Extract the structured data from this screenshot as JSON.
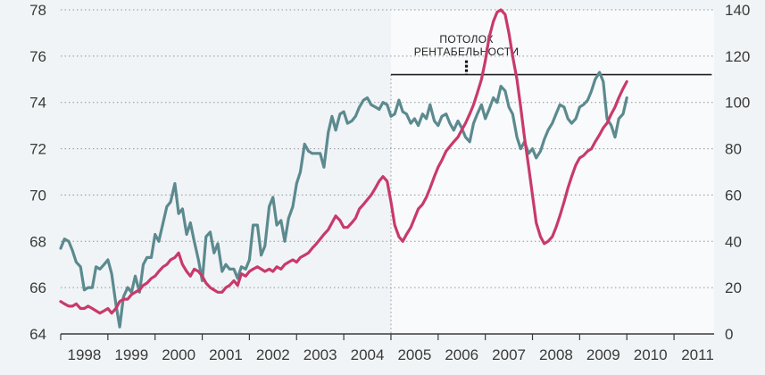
{
  "chart_data": {
    "type": "line",
    "xlabels": [
      "1998",
      "1999",
      "2000",
      "2001",
      "2002",
      "2003",
      "2004",
      "2005",
      "2006",
      "2007",
      "2008",
      "2009",
      "2010",
      "2011"
    ],
    "x_range": [
      1998.0,
      2011.85
    ],
    "y_left": {
      "range": [
        64,
        78
      ],
      "ticks": [
        64,
        66,
        68,
        70,
        72,
        74,
        76,
        78
      ]
    },
    "y_right": {
      "range": [
        0,
        140
      ],
      "ticks": [
        0,
        20,
        40,
        60,
        80,
        100,
        120,
        140
      ]
    },
    "grid": true,
    "highlight_start": 2005.0,
    "annotation": {
      "lines": [
        "ПОТОЛОК",
        "РЕНТАБЕЛЬНОСТИ"
      ],
      "ceiling_value": 75.2,
      "x_start": 2005.0,
      "x_end": 2011.8,
      "marker_x": 2006.6
    },
    "colors": {
      "teal": "#5b8a8f",
      "crimson": "#c83a6b",
      "trend": "#3a3344",
      "highlight": "#ffffff"
    },
    "series": [
      {
        "axis": "left",
        "color": "#5b8a8f",
        "points": [
          [
            1998.0,
            67.7
          ],
          [
            1998.08,
            68.1
          ],
          [
            1998.17,
            68.0
          ],
          [
            1998.25,
            67.6
          ],
          [
            1998.33,
            67.1
          ],
          [
            1998.42,
            66.9
          ],
          [
            1998.5,
            65.9
          ],
          [
            1998.58,
            66.0
          ],
          [
            1998.67,
            66.0
          ],
          [
            1998.75,
            66.9
          ],
          [
            1998.83,
            66.8
          ],
          [
            1998.92,
            67.0
          ],
          [
            1999.0,
            67.2
          ],
          [
            1999.08,
            66.6
          ],
          [
            1999.17,
            65.3
          ],
          [
            1999.25,
            64.3
          ],
          [
            1999.33,
            65.6
          ],
          [
            1999.42,
            66.0
          ],
          [
            1999.5,
            65.8
          ],
          [
            1999.58,
            66.5
          ],
          [
            1999.67,
            65.8
          ],
          [
            1999.75,
            67.0
          ],
          [
            1999.83,
            67.3
          ],
          [
            1999.92,
            67.3
          ],
          [
            2000.0,
            68.3
          ],
          [
            2000.08,
            68.0
          ],
          [
            2000.17,
            68.8
          ],
          [
            2000.25,
            69.5
          ],
          [
            2000.33,
            69.7
          ],
          [
            2000.42,
            70.5
          ],
          [
            2000.5,
            69.2
          ],
          [
            2000.58,
            69.4
          ],
          [
            2000.67,
            68.3
          ],
          [
            2000.75,
            68.8
          ],
          [
            2000.83,
            68.0
          ],
          [
            2000.92,
            67.2
          ],
          [
            2001.0,
            66.3
          ],
          [
            2001.08,
            68.2
          ],
          [
            2001.17,
            68.4
          ],
          [
            2001.25,
            67.5
          ],
          [
            2001.33,
            67.9
          ],
          [
            2001.42,
            66.7
          ],
          [
            2001.5,
            67.0
          ],
          [
            2001.58,
            66.8
          ],
          [
            2001.67,
            66.8
          ],
          [
            2001.75,
            66.4
          ],
          [
            2001.83,
            66.9
          ],
          [
            2001.92,
            66.8
          ],
          [
            2002.0,
            67.2
          ],
          [
            2002.08,
            68.7
          ],
          [
            2002.17,
            68.7
          ],
          [
            2002.25,
            67.4
          ],
          [
            2002.33,
            67.8
          ],
          [
            2002.42,
            69.5
          ],
          [
            2002.5,
            69.9
          ],
          [
            2002.58,
            68.7
          ],
          [
            2002.67,
            68.9
          ],
          [
            2002.75,
            68.0
          ],
          [
            2002.83,
            69.0
          ],
          [
            2002.92,
            69.5
          ],
          [
            2003.0,
            70.5
          ],
          [
            2003.08,
            71.0
          ],
          [
            2003.17,
            72.2
          ],
          [
            2003.25,
            71.9
          ],
          [
            2003.33,
            71.8
          ],
          [
            2003.42,
            71.8
          ],
          [
            2003.5,
            71.8
          ],
          [
            2003.58,
            71.2
          ],
          [
            2003.67,
            72.7
          ],
          [
            2003.75,
            73.4
          ],
          [
            2003.83,
            72.8
          ],
          [
            2003.92,
            73.5
          ],
          [
            2004.0,
            73.6
          ],
          [
            2004.08,
            73.1
          ],
          [
            2004.17,
            73.2
          ],
          [
            2004.25,
            73.4
          ],
          [
            2004.33,
            73.8
          ],
          [
            2004.42,
            74.1
          ],
          [
            2004.5,
            74.2
          ],
          [
            2004.58,
            73.9
          ],
          [
            2004.67,
            73.8
          ],
          [
            2004.75,
            73.7
          ],
          [
            2004.83,
            74.0
          ],
          [
            2004.92,
            73.9
          ],
          [
            2005.0,
            73.4
          ],
          [
            2005.08,
            73.5
          ],
          [
            2005.17,
            74.1
          ],
          [
            2005.25,
            73.6
          ],
          [
            2005.33,
            73.5
          ],
          [
            2005.42,
            73.1
          ],
          [
            2005.5,
            73.3
          ],
          [
            2005.58,
            73.0
          ],
          [
            2005.67,
            73.5
          ],
          [
            2005.75,
            73.3
          ],
          [
            2005.83,
            73.9
          ],
          [
            2005.92,
            73.2
          ],
          [
            2006.0,
            73.0
          ],
          [
            2006.08,
            73.4
          ],
          [
            2006.17,
            73.5
          ],
          [
            2006.25,
            73.1
          ],
          [
            2006.33,
            72.8
          ],
          [
            2006.42,
            73.2
          ],
          [
            2006.5,
            72.9
          ],
          [
            2006.58,
            72.5
          ],
          [
            2006.67,
            72.3
          ],
          [
            2006.75,
            73.1
          ],
          [
            2006.83,
            73.5
          ],
          [
            2006.92,
            73.9
          ],
          [
            2007.0,
            73.3
          ],
          [
            2007.08,
            73.7
          ],
          [
            2007.17,
            74.2
          ],
          [
            2007.25,
            74.0
          ],
          [
            2007.33,
            74.7
          ],
          [
            2007.42,
            74.5
          ],
          [
            2007.5,
            73.8
          ],
          [
            2007.58,
            73.5
          ],
          [
            2007.67,
            72.5
          ],
          [
            2007.75,
            72.0
          ],
          [
            2007.83,
            72.3
          ],
          [
            2007.92,
            71.8
          ],
          [
            2008.0,
            72.0
          ],
          [
            2008.08,
            71.6
          ],
          [
            2008.17,
            71.9
          ],
          [
            2008.25,
            72.4
          ],
          [
            2008.33,
            72.8
          ],
          [
            2008.42,
            73.1
          ],
          [
            2008.5,
            73.5
          ],
          [
            2008.58,
            73.9
          ],
          [
            2008.67,
            73.8
          ],
          [
            2008.75,
            73.3
          ],
          [
            2008.83,
            73.1
          ],
          [
            2008.92,
            73.3
          ],
          [
            2009.0,
            73.8
          ],
          [
            2009.08,
            73.9
          ],
          [
            2009.17,
            74.1
          ],
          [
            2009.25,
            74.5
          ],
          [
            2009.33,
            75.0
          ],
          [
            2009.42,
            75.3
          ],
          [
            2009.5,
            74.9
          ],
          [
            2009.58,
            73.3
          ],
          [
            2009.67,
            73.0
          ],
          [
            2009.75,
            72.5
          ],
          [
            2009.83,
            73.3
          ],
          [
            2009.92,
            73.5
          ],
          [
            2010.0,
            74.2
          ]
        ]
      },
      {
        "axis": "right",
        "color": "#c83a6b",
        "points": [
          [
            1998.0,
            14
          ],
          [
            1998.08,
            13
          ],
          [
            1998.17,
            12
          ],
          [
            1998.25,
            12
          ],
          [
            1998.33,
            13
          ],
          [
            1998.42,
            11
          ],
          [
            1998.5,
            11
          ],
          [
            1998.58,
            12
          ],
          [
            1998.67,
            11
          ],
          [
            1998.75,
            10
          ],
          [
            1998.83,
            9
          ],
          [
            1998.92,
            10
          ],
          [
            1999.0,
            11
          ],
          [
            1999.08,
            9
          ],
          [
            1999.17,
            11
          ],
          [
            1999.25,
            14
          ],
          [
            1999.33,
            15
          ],
          [
            1999.42,
            15
          ],
          [
            1999.5,
            17
          ],
          [
            1999.58,
            18
          ],
          [
            1999.67,
            19
          ],
          [
            1999.75,
            21
          ],
          [
            1999.83,
            22
          ],
          [
            1999.92,
            24
          ],
          [
            2000.0,
            25
          ],
          [
            2000.08,
            27
          ],
          [
            2000.17,
            29
          ],
          [
            2000.25,
            30
          ],
          [
            2000.33,
            32
          ],
          [
            2000.42,
            33
          ],
          [
            2000.5,
            35
          ],
          [
            2000.58,
            30
          ],
          [
            2000.67,
            27
          ],
          [
            2000.75,
            25
          ],
          [
            2000.83,
            28
          ],
          [
            2000.92,
            27
          ],
          [
            2001.0,
            25
          ],
          [
            2001.08,
            22
          ],
          [
            2001.17,
            20
          ],
          [
            2001.25,
            19
          ],
          [
            2001.33,
            18
          ],
          [
            2001.42,
            18
          ],
          [
            2001.5,
            20
          ],
          [
            2001.58,
            21
          ],
          [
            2001.67,
            23
          ],
          [
            2001.75,
            21
          ],
          [
            2001.83,
            26
          ],
          [
            2001.92,
            25
          ],
          [
            2002.0,
            27
          ],
          [
            2002.08,
            28
          ],
          [
            2002.17,
            29
          ],
          [
            2002.25,
            28
          ],
          [
            2002.33,
            27
          ],
          [
            2002.42,
            28
          ],
          [
            2002.5,
            27
          ],
          [
            2002.58,
            29
          ],
          [
            2002.67,
            28
          ],
          [
            2002.75,
            30
          ],
          [
            2002.83,
            31
          ],
          [
            2002.92,
            32
          ],
          [
            2003.0,
            31
          ],
          [
            2003.08,
            33
          ],
          [
            2003.17,
            34
          ],
          [
            2003.25,
            35
          ],
          [
            2003.33,
            37
          ],
          [
            2003.42,
            39
          ],
          [
            2003.5,
            41
          ],
          [
            2003.58,
            43
          ],
          [
            2003.67,
            45
          ],
          [
            2003.75,
            48
          ],
          [
            2003.83,
            51
          ],
          [
            2003.92,
            49
          ],
          [
            2004.0,
            46
          ],
          [
            2004.08,
            46
          ],
          [
            2004.17,
            48
          ],
          [
            2004.25,
            50
          ],
          [
            2004.33,
            54
          ],
          [
            2004.42,
            56
          ],
          [
            2004.5,
            58
          ],
          [
            2004.58,
            60
          ],
          [
            2004.67,
            63
          ],
          [
            2004.75,
            66
          ],
          [
            2004.83,
            68
          ],
          [
            2004.92,
            66
          ],
          [
            2005.0,
            57
          ],
          [
            2005.08,
            47
          ],
          [
            2005.17,
            42
          ],
          [
            2005.25,
            40
          ],
          [
            2005.33,
            43
          ],
          [
            2005.42,
            46
          ],
          [
            2005.5,
            50
          ],
          [
            2005.58,
            54
          ],
          [
            2005.67,
            56
          ],
          [
            2005.75,
            59
          ],
          [
            2005.83,
            63
          ],
          [
            2005.92,
            68
          ],
          [
            2006.0,
            72
          ],
          [
            2006.08,
            75
          ],
          [
            2006.17,
            79
          ],
          [
            2006.25,
            81
          ],
          [
            2006.33,
            83
          ],
          [
            2006.42,
            85
          ],
          [
            2006.5,
            88
          ],
          [
            2006.58,
            91
          ],
          [
            2006.67,
            95
          ],
          [
            2006.75,
            99
          ],
          [
            2006.83,
            104
          ],
          [
            2006.92,
            110
          ],
          [
            2007.0,
            118
          ],
          [
            2007.08,
            128
          ],
          [
            2007.17,
            135
          ],
          [
            2007.25,
            139
          ],
          [
            2007.33,
            140
          ],
          [
            2007.42,
            138
          ],
          [
            2007.5,
            130
          ],
          [
            2007.58,
            120
          ],
          [
            2007.67,
            110
          ],
          [
            2007.75,
            98
          ],
          [
            2007.83,
            85
          ],
          [
            2007.92,
            72
          ],
          [
            2008.0,
            60
          ],
          [
            2008.08,
            48
          ],
          [
            2008.17,
            42
          ],
          [
            2008.25,
            39
          ],
          [
            2008.33,
            40
          ],
          [
            2008.42,
            42
          ],
          [
            2008.5,
            46
          ],
          [
            2008.58,
            51
          ],
          [
            2008.67,
            57
          ],
          [
            2008.75,
            63
          ],
          [
            2008.83,
            68
          ],
          [
            2008.92,
            73
          ],
          [
            2009.0,
            76
          ],
          [
            2009.08,
            77
          ],
          [
            2009.17,
            79
          ],
          [
            2009.25,
            80
          ],
          [
            2009.33,
            83
          ],
          [
            2009.42,
            86
          ],
          [
            2009.5,
            89
          ],
          [
            2009.58,
            91
          ],
          [
            2009.67,
            95
          ],
          [
            2009.75,
            98
          ],
          [
            2009.83,
            102
          ],
          [
            2009.92,
            106
          ],
          [
            2010.0,
            109
          ]
        ]
      },
      {
        "axis": "left",
        "color": "#3a3344",
        "points": []
      }
    ]
  }
}
